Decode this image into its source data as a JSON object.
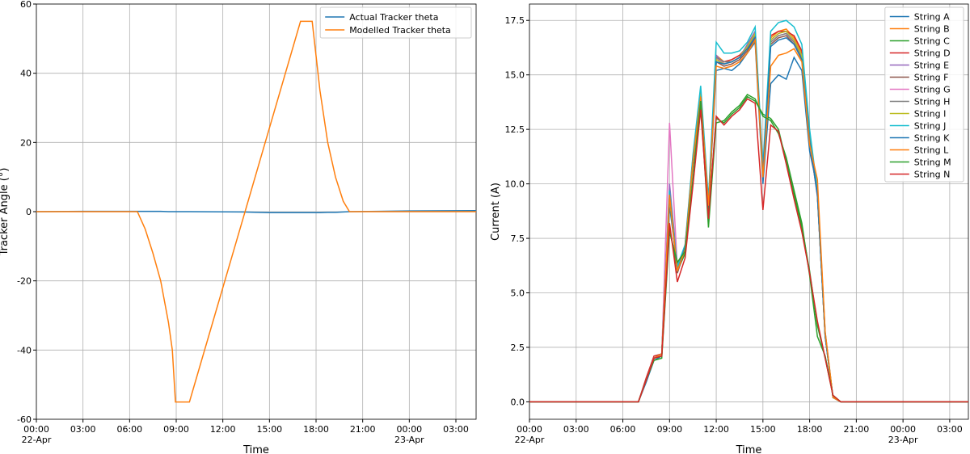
{
  "chart_data": [
    {
      "type": "line",
      "xlabel": "Time",
      "ylabel": "Tracker Angle (°)",
      "grid": true,
      "legend": "upper right",
      "x": [
        0,
        3,
        6,
        6.5,
        7,
        7.5,
        8,
        8.5,
        8.75,
        8.95,
        9.85,
        13.3,
        15,
        17,
        17.75,
        18.25,
        18.75,
        19.25,
        19.75,
        20.15,
        22,
        24,
        28.3
      ],
      "xlim": [
        0,
        28.3
      ],
      "xticks": [
        {
          "value": 0,
          "label": "00:00\n22-Apr"
        },
        {
          "value": 3,
          "label": "03:00"
        },
        {
          "value": 6,
          "label": "06:00"
        },
        {
          "value": 9,
          "label": "09:00"
        },
        {
          "value": 12,
          "label": "12:00"
        },
        {
          "value": 15,
          "label": "15:00"
        },
        {
          "value": 18,
          "label": "18:00"
        },
        {
          "value": 21,
          "label": "21:00"
        },
        {
          "value": 24,
          "label": "00:00\n23-Apr"
        },
        {
          "value": 27,
          "label": "03:00"
        }
      ],
      "ylim": [
        -60,
        60
      ],
      "yticks": [
        -60,
        -40,
        -20,
        0,
        20,
        40,
        60
      ],
      "series": [
        {
          "name": "Actual Tracker theta",
          "color": "#1f77b4",
          "values": [
            0,
            0.1,
            0.1,
            0.1,
            0.1,
            0.1,
            0.1,
            0,
            0,
            0,
            0,
            -0.1,
            -0.3,
            -0.3,
            -0.3,
            -0.3,
            -0.2,
            -0.2,
            -0.1,
            0,
            0.1,
            0.2,
            0.3
          ]
        },
        {
          "name": "Modelled Tracker theta",
          "color": "#ff7f0e",
          "values": [
            0,
            0,
            0,
            0,
            -5,
            -12,
            -20,
            -32,
            -40,
            -55,
            -55,
            -2,
            24.2,
            55,
            55,
            35,
            20,
            10,
            3,
            0,
            0,
            0,
            0
          ]
        }
      ]
    },
    {
      "type": "line",
      "xlabel": "Time",
      "ylabel": "Current (A)",
      "grid": true,
      "legend": "upper right",
      "x": [
        0,
        7,
        7.5,
        8,
        8.5,
        9,
        9.5,
        10,
        10.5,
        11,
        11.5,
        12,
        12.5,
        13,
        13.5,
        14,
        14.5,
        15,
        15.5,
        16,
        16.5,
        17,
        17.5,
        18,
        18.5,
        19,
        19.5,
        20,
        20.5,
        21,
        28.2
      ],
      "xlim": [
        0,
        28.2
      ],
      "xticks": [
        {
          "value": 0,
          "label": "00:00\n22-Apr"
        },
        {
          "value": 3,
          "label": "03:00"
        },
        {
          "value": 6,
          "label": "06:00"
        },
        {
          "value": 9,
          "label": "09:00"
        },
        {
          "value": 12,
          "label": "12:00"
        },
        {
          "value": 15,
          "label": "15:00"
        },
        {
          "value": 18,
          "label": "18:00"
        },
        {
          "value": 21,
          "label": "21:00"
        },
        {
          "value": 24,
          "label": "00:00\n23-Apr"
        },
        {
          "value": 27,
          "label": "03:00"
        }
      ],
      "ylim": [
        -0.8,
        18.25
      ],
      "yticks": [
        {
          "value": 0,
          "label": "0.0"
        },
        2.5,
        {
          "value": 5,
          "label": "5.0"
        },
        7.5,
        {
          "value": 10,
          "label": "10.0"
        },
        12.5,
        {
          "value": 15,
          "label": "15.0"
        },
        17.5
      ],
      "series": [
        {
          "name": "String A",
          "color": "#1f77b4",
          "values": [
            0,
            0,
            0.9,
            1.9,
            2.1,
            9.0,
            6.2,
            7.2,
            10.8,
            13.6,
            8.8,
            15.2,
            15.3,
            15.2,
            15.5,
            16.0,
            16.5,
            10.0,
            14.6,
            15.0,
            14.8,
            15.8,
            15.2,
            11.5,
            9.8,
            3.2,
            0.2,
            0,
            0,
            0,
            0
          ]
        },
        {
          "name": "String B",
          "color": "#ff7f0e",
          "values": [
            0,
            0,
            1.0,
            2.0,
            2.2,
            9.8,
            6.1,
            7.1,
            11.2,
            14.2,
            9.1,
            15.9,
            15.6,
            15.7,
            15.9,
            16.3,
            16.9,
            10.6,
            16.7,
            17.0,
            17.1,
            16.7,
            16.0,
            12.2,
            9.6,
            3.1,
            0.2,
            0,
            0,
            0,
            0
          ]
        },
        {
          "name": "String C",
          "color": "#2ca02c",
          "values": [
            0,
            0,
            1.0,
            2.0,
            2.1,
            8.0,
            6.0,
            6.8,
            10.0,
            13.5,
            8.5,
            13.0,
            12.8,
            13.2,
            13.5,
            14.0,
            13.8,
            13.2,
            13.0,
            12.5,
            11.0,
            9.5,
            8.0,
            6.0,
            3.5,
            2.0,
            0.3,
            0,
            0,
            0,
            0
          ]
        },
        {
          "name": "String D",
          "color": "#d62728",
          "values": [
            0,
            0,
            1.1,
            2.1,
            2.2,
            9.6,
            6.0,
            7.0,
            11.1,
            14.1,
            9.0,
            15.7,
            15.6,
            15.7,
            15.9,
            16.2,
            16.8,
            10.4,
            16.8,
            17.0,
            17.0,
            16.8,
            16.1,
            12.1,
            9.5,
            3.0,
            0.2,
            0,
            0,
            0,
            0
          ]
        },
        {
          "name": "String E",
          "color": "#9467bd",
          "values": [
            0,
            0,
            1.0,
            2.0,
            2.2,
            10.0,
            6.3,
            7.1,
            11.0,
            14.0,
            9.2,
            15.9,
            15.5,
            15.6,
            15.8,
            16.4,
            17.0,
            10.6,
            16.6,
            16.9,
            17.0,
            16.6,
            15.9,
            12.0,
            9.4,
            3.0,
            0.2,
            0,
            0,
            0,
            0
          ]
        },
        {
          "name": "String F",
          "color": "#8c564b",
          "values": [
            0,
            0,
            1.0,
            2.0,
            2.2,
            9.4,
            5.9,
            7.0,
            11.0,
            13.9,
            9.0,
            15.6,
            15.4,
            15.5,
            15.7,
            16.1,
            16.7,
            10.5,
            16.4,
            16.7,
            16.8,
            16.4,
            15.7,
            11.9,
            9.5,
            3.0,
            0.2,
            0,
            0,
            0,
            0
          ]
        },
        {
          "name": "String G",
          "color": "#e377c2",
          "values": [
            0,
            0,
            1.0,
            2.0,
            2.2,
            12.8,
            6.2,
            7.0,
            11.0,
            14.0,
            9.1,
            15.8,
            15.5,
            15.6,
            15.8,
            16.2,
            16.8,
            10.5,
            16.5,
            16.8,
            16.9,
            16.5,
            15.8,
            12.0,
            9.5,
            3.0,
            0.2,
            0,
            0,
            0,
            0
          ]
        },
        {
          "name": "String H",
          "color": "#7f7f7f",
          "values": [
            0,
            0,
            1.0,
            2.0,
            2.2,
            9.5,
            6.0,
            7.0,
            11.0,
            14.0,
            9.0,
            15.8,
            15.6,
            15.6,
            15.8,
            16.2,
            16.8,
            10.5,
            16.5,
            16.8,
            16.9,
            16.5,
            15.8,
            12.0,
            9.5,
            3.0,
            0.2,
            0,
            0,
            0,
            0
          ]
        },
        {
          "name": "String I",
          "color": "#bcbd22",
          "values": [
            0,
            0,
            1.0,
            2.0,
            2.2,
            9.3,
            6.1,
            7.0,
            10.9,
            14.1,
            9.0,
            15.7,
            15.5,
            15.6,
            15.8,
            16.3,
            16.9,
            10.4,
            16.6,
            16.9,
            17.0,
            16.6,
            15.9,
            12.1,
            9.5,
            3.0,
            0.2,
            0,
            0,
            0,
            0
          ]
        },
        {
          "name": "String J",
          "color": "#17becf",
          "values": [
            0,
            0,
            1.0,
            2.0,
            2.2,
            9.7,
            6.2,
            7.2,
            11.3,
            14.5,
            9.3,
            16.5,
            16.0,
            16.0,
            16.1,
            16.5,
            17.2,
            10.8,
            17.0,
            17.4,
            17.5,
            17.2,
            16.4,
            12.5,
            9.7,
            3.1,
            0.2,
            0,
            0,
            0,
            0
          ]
        },
        {
          "name": "String K",
          "color": "#1f77b4",
          "values": [
            0,
            0,
            1.0,
            2.0,
            2.2,
            9.5,
            6.0,
            7.1,
            11.0,
            14.0,
            9.0,
            15.6,
            15.5,
            15.6,
            15.8,
            16.2,
            16.7,
            10.5,
            16.3,
            16.6,
            16.7,
            16.4,
            15.7,
            12.0,
            9.5,
            3.0,
            0.2,
            0,
            0,
            0,
            0
          ]
        },
        {
          "name": "String L",
          "color": "#ff7f0e",
          "values": [
            0,
            0,
            1.0,
            2.0,
            2.2,
            9.5,
            6.0,
            7.0,
            11.0,
            14.0,
            9.0,
            15.4,
            15.3,
            15.4,
            15.6,
            16.0,
            16.6,
            10.3,
            15.4,
            15.9,
            16.0,
            16.2,
            15.6,
            11.8,
            10.2,
            3.2,
            0.2,
            0,
            0,
            0,
            0
          ]
        },
        {
          "name": "String M",
          "color": "#2ca02c",
          "values": [
            0,
            0,
            1.0,
            1.9,
            2.0,
            7.8,
            6.4,
            6.9,
            10.2,
            13.8,
            8.0,
            12.8,
            12.9,
            13.3,
            13.6,
            14.1,
            13.9,
            13.1,
            12.9,
            12.3,
            11.2,
            9.7,
            8.2,
            5.8,
            3.0,
            2.1,
            0.3,
            0,
            0,
            0,
            0
          ]
        },
        {
          "name": "String N",
          "color": "#d62728",
          "values": [
            0,
            0,
            1.0,
            2.0,
            2.1,
            8.2,
            5.5,
            6.6,
            9.9,
            13.4,
            8.4,
            13.1,
            12.7,
            13.1,
            13.4,
            13.9,
            13.7,
            8.8,
            12.7,
            12.4,
            10.9,
            9.3,
            7.8,
            5.9,
            3.7,
            2.0,
            0.3,
            0,
            0,
            0,
            0
          ]
        }
      ]
    }
  ]
}
